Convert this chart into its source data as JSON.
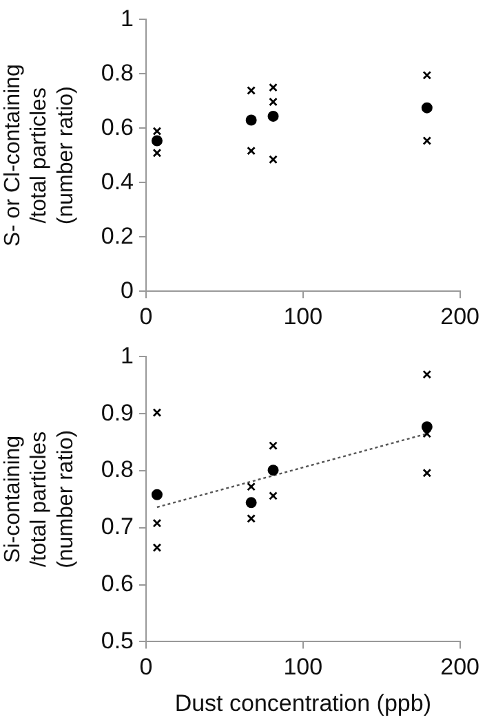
{
  "chart_data": [
    {
      "type": "scatter",
      "ylabel": "S- or Cl-containing\n/total particles\n(number ratio)",
      "xlim": [
        0,
        200
      ],
      "xticks": [
        0,
        100,
        200
      ],
      "ylim": [
        0,
        1
      ],
      "yticks": [
        0,
        0.2,
        0.4,
        0.6,
        0.8,
        1
      ],
      "grid": false,
      "legend": false,
      "series": [
        {
          "color": "#000000",
          "marker": "cross",
          "x": [
            7,
            7,
            67,
            67,
            81,
            81,
            81,
            179,
            179
          ],
          "values": [
            0.589,
            0.509,
            0.739,
            0.517,
            0.75,
            0.697,
            0.485,
            0.795,
            0.554
          ]
        },
        {
          "color": "#000000",
          "marker": "circle",
          "x": [
            7,
            67,
            81,
            179
          ],
          "values": [
            0.554,
            0.63,
            0.644,
            0.675
          ]
        }
      ]
    },
    {
      "type": "scatter",
      "xlabel": "Dust concentration (ppb)",
      "ylabel": "Si-containing\n/total particles\n(number ratio)",
      "xlim": [
        0,
        200
      ],
      "xticks": [
        0,
        100,
        200
      ],
      "ylim": [
        0.5,
        1
      ],
      "yticks": [
        0.5,
        0.6,
        0.7,
        0.8,
        0.9,
        1
      ],
      "grid": false,
      "legend": false,
      "series": [
        {
          "color": "#000000",
          "marker": "cross",
          "x": [
            7,
            7,
            7,
            67,
            67,
            81,
            81,
            179,
            179,
            179
          ],
          "values": [
            0.902,
            0.708,
            0.665,
            0.772,
            0.716,
            0.844,
            0.756,
            0.969,
            0.865,
            0.796
          ]
        },
        {
          "color": "#000000",
          "marker": "circle",
          "x": [
            7,
            67,
            81,
            179
          ],
          "values": [
            0.758,
            0.744,
            0.801,
            0.877
          ]
        },
        {
          "type": "line",
          "color": "#555555",
          "line_style": "dotted",
          "marker": "none",
          "x": [
            7,
            179
          ],
          "values": [
            0.736,
            0.865
          ]
        }
      ]
    }
  ]
}
